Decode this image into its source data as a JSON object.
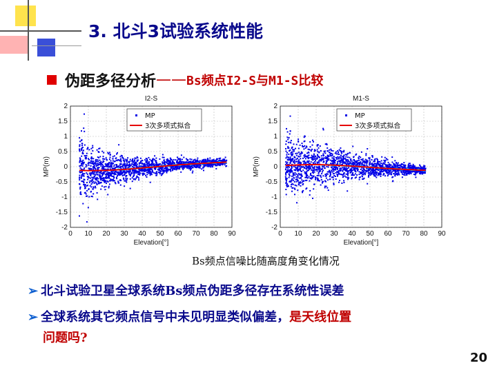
{
  "slide": {
    "title": "3. 北斗3试验系统性能",
    "subtitle_main": "伪距多径分析",
    "subtitle_sep": "——",
    "subtitle_accent": "Bs频点I2-S与M1-S比较",
    "caption": "Bs频点信噪比随高度角变化情况",
    "bullet1": "北斗试验卫星全球系统Bs频点伪距多径存在系统性误差",
    "bullet2_black": "全球系统其它频点信号中未见明显类似偏差，",
    "bullet2_red": "是天线位置",
    "bullet2_red_cont": "问题吗?",
    "page_number": "20",
    "colors": {
      "title": "#0a0a8c",
      "points": "#0000e6",
      "fit": "#e60000",
      "accent": "#c00000",
      "cyan": "#00e0ff"
    }
  },
  "chart_data": [
    {
      "type": "scatter",
      "title": "I2-S",
      "xlabel": "Elevation[°]",
      "ylabel": "MP(m)",
      "xlim": [
        0,
        90
      ],
      "ylim": [
        -2,
        2
      ],
      "xticks": [
        0,
        10,
        20,
        30,
        40,
        50,
        60,
        70,
        80,
        90
      ],
      "yticks": [
        2,
        1.5,
        1,
        0.5,
        0,
        -0.5,
        -1,
        -1.5,
        -2
      ],
      "grid": true,
      "legend_position": "top-left",
      "x_range_data": [
        5,
        87
      ],
      "series": [
        {
          "name": "MP",
          "marker": "point",
          "color": "#0000e6",
          "spread": [
            [
              5,
              0.9
            ],
            [
              10,
              0.75
            ],
            [
              15,
              0.5
            ],
            [
              20,
              0.42
            ],
            [
              30,
              0.32
            ],
            [
              40,
              0.25
            ],
            [
              50,
              0.2
            ],
            [
              60,
              0.15
            ],
            [
              70,
              0.12
            ],
            [
              80,
              0.1
            ],
            [
              87,
              0.09
            ]
          ]
        },
        {
          "name": "3次多项式拟合",
          "marker": "line",
          "color": "#e60000",
          "x": [
            5,
            10,
            20,
            30,
            40,
            50,
            60,
            70,
            80,
            87
          ],
          "y": [
            -0.12,
            -0.13,
            -0.12,
            -0.09,
            -0.04,
            0.01,
            0.06,
            0.1,
            0.13,
            0.15
          ]
        }
      ]
    },
    {
      "type": "scatter",
      "title": "M1-S",
      "xlabel": "Elevation[°]",
      "ylabel": "MP(m)",
      "xlim": [
        0,
        90
      ],
      "ylim": [
        -2,
        2
      ],
      "xticks": [
        0,
        10,
        20,
        30,
        40,
        50,
        60,
        70,
        80,
        90
      ],
      "yticks": [
        2,
        1.5,
        1,
        0.5,
        0,
        -0.5,
        -1,
        -1.5,
        -2
      ],
      "grid": true,
      "legend_position": "top-left",
      "x_range_data": [
        3,
        81
      ],
      "series": [
        {
          "name": "MP",
          "marker": "point",
          "color": "#0000e6",
          "spread": [
            [
              3,
              0.75
            ],
            [
              10,
              0.65
            ],
            [
              20,
              0.55
            ],
            [
              30,
              0.45
            ],
            [
              40,
              0.35
            ],
            [
              50,
              0.28
            ],
            [
              60,
              0.2
            ],
            [
              70,
              0.14
            ],
            [
              81,
              0.1
            ]
          ]
        },
        {
          "name": "3次多项式拟合",
          "marker": "line",
          "color": "#e60000",
          "x": [
            3,
            10,
            20,
            30,
            40,
            50,
            60,
            70,
            81
          ],
          "y": [
            0.04,
            0.06,
            0.07,
            0.05,
            0.02,
            -0.02,
            -0.06,
            -0.09,
            -0.12
          ]
        }
      ]
    }
  ]
}
